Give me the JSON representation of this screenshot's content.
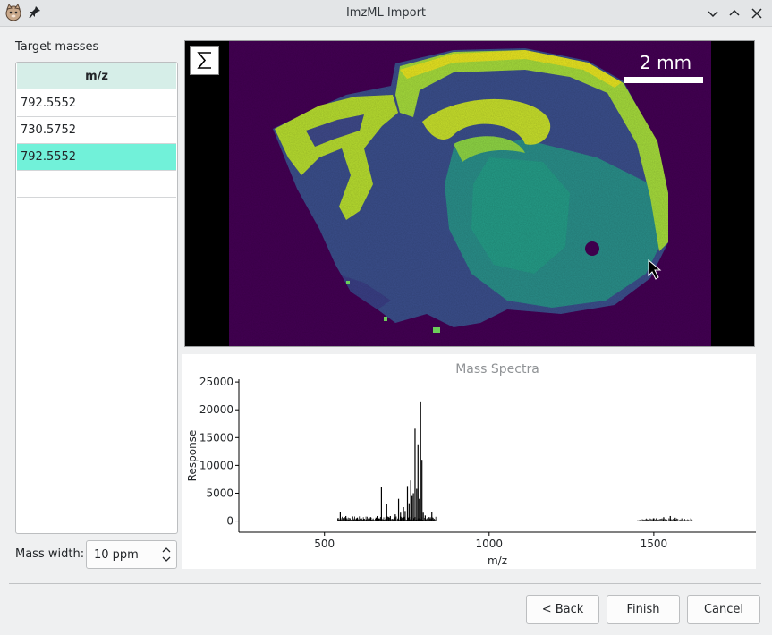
{
  "window": {
    "title": "ImzML Import",
    "app_icon": "cat-icon",
    "pin_icon": "pin-icon",
    "controls": [
      "chevron-down-icon",
      "chevron-up-icon",
      "close-icon"
    ]
  },
  "left_panel": {
    "label": "Target masses",
    "table": {
      "header": "m/z",
      "rows": [
        {
          "value": "792.5552",
          "selected": false
        },
        {
          "value": "730.5752",
          "selected": false
        },
        {
          "value": "792.5552",
          "selected": true
        }
      ]
    },
    "mass_width": {
      "label": "Mass width:",
      "value": "10 ppm"
    }
  },
  "image_view": {
    "sum_button_icon": "sigma-icon",
    "scale_text": "2 mm",
    "colormap": "viridis"
  },
  "colors": {
    "accent_selection": "#71f1d9",
    "header_bg": "#d6eee8",
    "image_bg": "#440154"
  },
  "chart_data": {
    "type": "line",
    "title": "Mass Spectra",
    "xlabel": "m/z",
    "ylabel": "Response",
    "xlim": [
      240,
      1810
    ],
    "ylim": [
      -2000,
      25500
    ],
    "xticks": [
      500,
      1000,
      1500
    ],
    "yticks": [
      0,
      5000,
      10000,
      15000,
      20000,
      25000
    ],
    "grid": false,
    "peaks": [
      {
        "x": 548,
        "y": 1700
      },
      {
        "x": 565,
        "y": 900
      },
      {
        "x": 600,
        "y": 600
      },
      {
        "x": 640,
        "y": 700
      },
      {
        "x": 660,
        "y": 900
      },
      {
        "x": 673,
        "y": 6200
      },
      {
        "x": 689,
        "y": 3100
      },
      {
        "x": 700,
        "y": 900
      },
      {
        "x": 715,
        "y": 1200
      },
      {
        "x": 725,
        "y": 4000
      },
      {
        "x": 731,
        "y": 1500
      },
      {
        "x": 740,
        "y": 2500
      },
      {
        "x": 745,
        "y": 1800
      },
      {
        "x": 752,
        "y": 6300
      },
      {
        "x": 757,
        "y": 3200
      },
      {
        "x": 762,
        "y": 7300
      },
      {
        "x": 766,
        "y": 4500
      },
      {
        "x": 770,
        "y": 5000
      },
      {
        "x": 775,
        "y": 16600
      },
      {
        "x": 780,
        "y": 5800
      },
      {
        "x": 784,
        "y": 13800
      },
      {
        "x": 788,
        "y": 4000
      },
      {
        "x": 792,
        "y": 21500
      },
      {
        "x": 796,
        "y": 11000
      },
      {
        "x": 800,
        "y": 1500
      },
      {
        "x": 806,
        "y": 1000
      },
      {
        "x": 818,
        "y": 700
      },
      {
        "x": 826,
        "y": 1600
      },
      {
        "x": 1500,
        "y": 500
      },
      {
        "x": 1530,
        "y": 700
      },
      {
        "x": 1550,
        "y": 900
      },
      {
        "x": 1565,
        "y": 600
      }
    ]
  },
  "buttons": {
    "back": "< Back",
    "finish": "Finish",
    "cancel": "Cancel"
  }
}
